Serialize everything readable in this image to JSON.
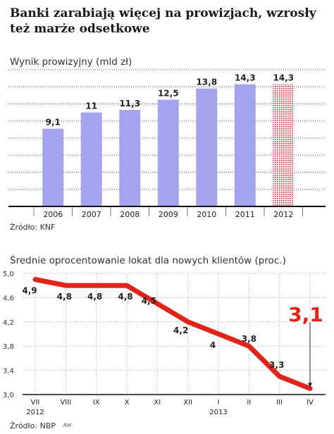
{
  "title": "Banki zarabiają więcej na prowizjach, wzrosły też marże odsetkowe",
  "charts": [
    {
      "subtitle": "Wynik prowizyjny (mld zł)",
      "source": "Źródło: KNF",
      "colors": {
        "bar": "#a3a3ee",
        "forecast": "#d9272e",
        "grid": "#555555"
      }
    },
    {
      "subtitle": "Średnie oprocentowanie lokat dla nowych klientów (proc.)",
      "source": "Źródło: NBP",
      "credit": "RM",
      "colors": {
        "line": "#e2231a",
        "highlight": "#e2231a",
        "grid": "#aaaaaa"
      }
    }
  ],
  "chart_data": [
    {
      "type": "bar",
      "categories": [
        "2006",
        "2007",
        "2008",
        "2009",
        "2010",
        "2011",
        "2012"
      ],
      "values": [
        9.1,
        11,
        11.3,
        12.5,
        13.8,
        14.3,
        14.3
      ],
      "value_labels": [
        "9,1",
        "11",
        "11,3",
        "12,5",
        "13,8",
        "14,3",
        "14,3"
      ],
      "forecast_index": 6,
      "ylim": [
        0,
        16
      ],
      "grid": true
    },
    {
      "type": "line",
      "x": [
        "VII",
        "VIII",
        "IX",
        "X",
        "XI",
        "XII",
        "I",
        "II",
        "III",
        "IV"
      ],
      "year_labels": [
        {
          "index": 0,
          "label": "2012"
        },
        {
          "index": 6,
          "label": "2013"
        }
      ],
      "values": [
        4.9,
        4.8,
        4.8,
        4.8,
        4.5,
        4.2,
        4.0,
        3.8,
        3.3,
        3.1
      ],
      "value_labels": [
        "4,9",
        "4,8",
        "4,8",
        "4,8",
        "4,5",
        "4,2",
        "4",
        "3,8",
        "3,3",
        "3,1"
      ],
      "yticks": [
        3.0,
        3.4,
        3.8,
        4.2,
        4.6,
        5.0
      ],
      "ytick_labels": [
        "3,0",
        "3,4",
        "3,8",
        "4,2",
        "4,6",
        "5,0"
      ],
      "ylim": [
        3.0,
        5.0
      ],
      "highlight_index": 9,
      "grid": true
    }
  ]
}
